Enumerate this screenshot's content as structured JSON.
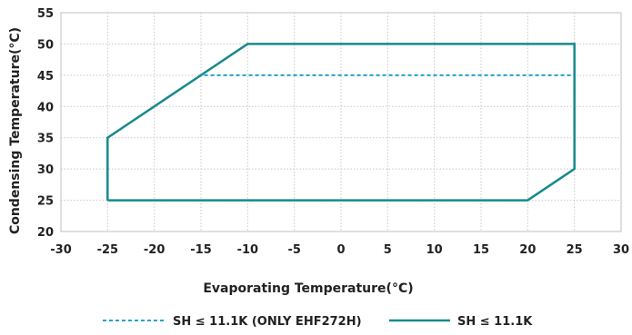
{
  "chart_data": {
    "type": "line",
    "title": "",
    "xlabel": "Evaporating Temperature(°C)",
    "ylabel": "Condensing Temperature(°C)",
    "xlim": [
      -30,
      30
    ],
    "ylim": [
      20,
      55
    ],
    "xticks": [
      "-30",
      "-25",
      "-20",
      "-15",
      "-10",
      "-5",
      "0",
      "5",
      "10",
      "15",
      "20",
      "25",
      "30"
    ],
    "yticks": [
      "20",
      "25",
      "30",
      "35",
      "40",
      "45",
      "50",
      "55"
    ],
    "grid": true,
    "legend_position": "bottom",
    "series": [
      {
        "name": "SH ≤ 11.1K (ONLY EHF272H)",
        "style": "dashed",
        "color": "#1fa3c9",
        "points": [
          [
            -25,
            25
          ],
          [
            -25,
            35
          ],
          [
            -15,
            45
          ],
          [
            25,
            45
          ],
          [
            25,
            30
          ],
          [
            20,
            25
          ],
          [
            -25,
            25
          ]
        ]
      },
      {
        "name": "SH ≤ 11.1K",
        "style": "solid",
        "color": "#178a8c",
        "points": [
          [
            -25,
            25
          ],
          [
            -25,
            35
          ],
          [
            -10,
            50
          ],
          [
            25,
            50
          ],
          [
            25,
            30
          ],
          [
            20,
            25
          ],
          [
            -25,
            25
          ]
        ]
      }
    ]
  }
}
